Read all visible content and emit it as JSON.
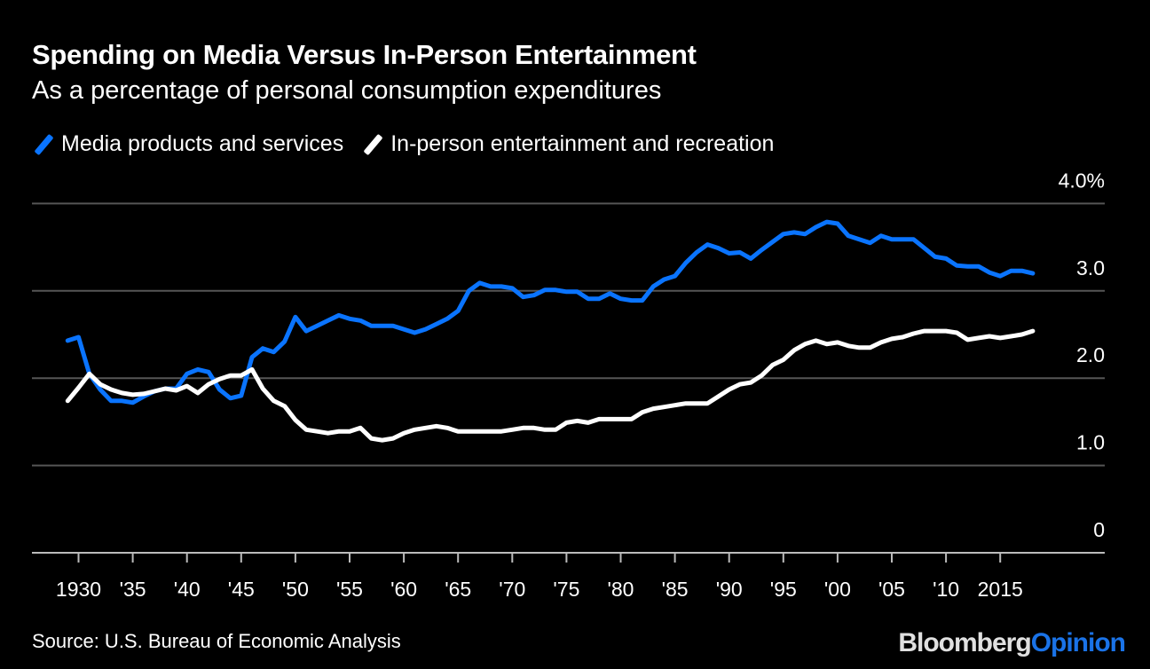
{
  "title": "Spending on Media Versus In-Person Entertainment",
  "subtitle": "As a percentage of personal consumption expenditures",
  "source": "Source: U.S. Bureau of Economic Analysis",
  "logo": {
    "part1": "Bloomberg",
    "part2": "Opinion"
  },
  "colors": {
    "media": "#0a74ff",
    "inperson": "#ffffff",
    "grid": "#555555",
    "background": "#000000"
  },
  "chart_data": {
    "type": "line",
    "title": "Spending on Media Versus In-Person Entertainment",
    "subtitle": "As a percentage of personal consumption expenditures",
    "ylim": [
      0,
      4
    ],
    "xlim": [
      1929,
      2018
    ],
    "grid": true,
    "legend_position": "top-left",
    "y_ticks": [
      {
        "value": 0,
        "label": "0"
      },
      {
        "value": 1,
        "label": "1.0"
      },
      {
        "value": 2,
        "label": "2.0"
      },
      {
        "value": 3,
        "label": "3.0"
      },
      {
        "value": 4,
        "label": "4.0%"
      }
    ],
    "x_ticks": [
      {
        "value": 1930,
        "label": "1930"
      },
      {
        "value": 1935,
        "label": "'35"
      },
      {
        "value": 1940,
        "label": "'40"
      },
      {
        "value": 1945,
        "label": "'45"
      },
      {
        "value": 1950,
        "label": "'50"
      },
      {
        "value": 1955,
        "label": "'55"
      },
      {
        "value": 1960,
        "label": "'60"
      },
      {
        "value": 1965,
        "label": "'65"
      },
      {
        "value": 1970,
        "label": "'70"
      },
      {
        "value": 1975,
        "label": "'75"
      },
      {
        "value": 1980,
        "label": "'80"
      },
      {
        "value": 1985,
        "label": "'85"
      },
      {
        "value": 1990,
        "label": "'90"
      },
      {
        "value": 1995,
        "label": "'95"
      },
      {
        "value": 2000,
        "label": "'00"
      },
      {
        "value": 2005,
        "label": "'05"
      },
      {
        "value": 2010,
        "label": "'10"
      },
      {
        "value": 2015,
        "label": "2015"
      }
    ],
    "x_start": 1929,
    "series": [
      {
        "name": "Media products and services",
        "color": "#0a74ff",
        "values": [
          2.43,
          2.47,
          2.05,
          1.87,
          1.74,
          1.74,
          1.72,
          1.79,
          1.85,
          1.88,
          1.88,
          2.05,
          2.1,
          2.07,
          1.87,
          1.77,
          1.8,
          2.24,
          2.34,
          2.3,
          2.42,
          2.7,
          2.54,
          2.6,
          2.66,
          2.72,
          2.68,
          2.66,
          2.6,
          2.6,
          2.6,
          2.56,
          2.52,
          2.56,
          2.62,
          2.68,
          2.77,
          3.0,
          3.09,
          3.05,
          3.05,
          3.03,
          2.93,
          2.95,
          3.01,
          3.01,
          2.99,
          2.99,
          2.91,
          2.91,
          2.97,
          2.91,
          2.89,
          2.89,
          3.05,
          3.13,
          3.17,
          3.32,
          3.44,
          3.53,
          3.49,
          3.43,
          3.44,
          3.37,
          3.47,
          3.56,
          3.65,
          3.67,
          3.65,
          3.73,
          3.79,
          3.77,
          3.63,
          3.59,
          3.55,
          3.63,
          3.59,
          3.59,
          3.59,
          3.49,
          3.39,
          3.37,
          3.29,
          3.28,
          3.28,
          3.21,
          3.17,
          3.23,
          3.23,
          3.2
        ]
      },
      {
        "name": "In-person entertainment and recreation",
        "color": "#ffffff",
        "values": [
          1.74,
          1.89,
          2.05,
          1.93,
          1.87,
          1.83,
          1.81,
          1.82,
          1.85,
          1.88,
          1.86,
          1.91,
          1.83,
          1.93,
          1.99,
          2.03,
          2.03,
          2.1,
          1.88,
          1.74,
          1.68,
          1.52,
          1.41,
          1.39,
          1.37,
          1.39,
          1.39,
          1.43,
          1.31,
          1.29,
          1.31,
          1.37,
          1.41,
          1.43,
          1.45,
          1.43,
          1.39,
          1.39,
          1.39,
          1.39,
          1.39,
          1.41,
          1.43,
          1.43,
          1.41,
          1.41,
          1.49,
          1.51,
          1.49,
          1.53,
          1.53,
          1.53,
          1.53,
          1.61,
          1.65,
          1.67,
          1.69,
          1.71,
          1.71,
          1.71,
          1.79,
          1.87,
          1.93,
          1.95,
          2.03,
          2.15,
          2.21,
          2.32,
          2.39,
          2.43,
          2.39,
          2.41,
          2.37,
          2.35,
          2.35,
          2.41,
          2.45,
          2.47,
          2.51,
          2.54,
          2.54,
          2.54,
          2.52,
          2.44,
          2.46,
          2.48,
          2.46,
          2.48,
          2.5,
          2.54
        ]
      }
    ]
  }
}
